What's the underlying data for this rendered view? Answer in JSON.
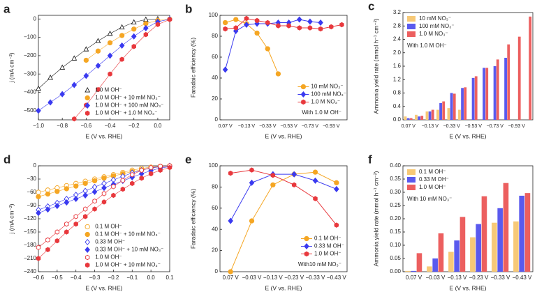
{
  "chart_data": [
    {
      "type": "scatter",
      "label": "a",
      "xlabel": "E (V vs. RHE)",
      "ylabel": "j (mA cm⁻²)",
      "legend": "lower right",
      "x": [
        -1.0,
        -0.9,
        -0.8,
        -0.7,
        -0.6,
        -0.5,
        -0.4,
        -0.3,
        -0.2,
        -0.1,
        0.0,
        0.1
      ],
      "xlim": [
        -1.0,
        0.1
      ],
      "xticks": [
        {
          "value": -1.0,
          "label": "−1.0"
        },
        {
          "value": -0.8,
          "label": "−0.8"
        },
        {
          "value": -0.6,
          "label": "−0.6"
        },
        {
          "value": -0.4,
          "label": "−0.4"
        },
        {
          "value": -0.2,
          "label": "−0.2"
        },
        {
          "value": 0,
          "label": "0.0"
        }
      ],
      "ylim": [
        -550,
        20
      ],
      "yticks": [
        0,
        {
          "value": -100,
          "label": "−100"
        },
        {
          "value": -200,
          "label": "−200"
        },
        {
          "value": -300,
          "label": "−300"
        },
        {
          "value": -400,
          "label": "−400"
        },
        {
          "value": -500,
          "label": "−500"
        }
      ],
      "series": [
        {
          "name": "1.0 M OH⁻",
          "color": "#222222",
          "marker": "triangle",
          "filled": false,
          "values": [
            -380,
            -320,
            -265,
            -215,
            -165,
            -120,
            -80,
            -45,
            -18,
            -3,
            0,
            null
          ]
        },
        {
          "name": "1.0 M OH⁻ + 10 mM NO₃⁻",
          "color": "#f5a623",
          "marker": "circle",
          "filled": true,
          "values": [
            null,
            null,
            null,
            null,
            -225,
            -175,
            -130,
            -90,
            -55,
            -25,
            -8,
            -1
          ]
        },
        {
          "name": "1.0 M OH⁻ + 100 mM NO₃⁻",
          "color": "#3a3af0",
          "marker": "diamond",
          "filled": true,
          "values": [
            -500,
            -455,
            -410,
            -360,
            -310,
            -255,
            -200,
            -145,
            -95,
            -50,
            -15,
            -1
          ]
        },
        {
          "name": "1.0 M OH⁻ + 1.0 M NO₃⁻",
          "color": "#e8383d",
          "marker": "hexagon",
          "filled": true,
          "values": [
            null,
            null,
            null,
            -545,
            -470,
            -385,
            -300,
            -220,
            -150,
            -85,
            -30,
            -3
          ]
        }
      ]
    },
    {
      "type": "line",
      "label": "b",
      "xlabel": "E (V vs. RHE)",
      "ylabel": "Faradaic efficiency (%)",
      "legend": "lower right",
      "annotation": "With 1.0 M OH⁻",
      "categories": [
        "0.07 V",
        null,
        "−0.13 V",
        null,
        "−0.33 V",
        null,
        "−0.53 V",
        null,
        "−0.73 V",
        null,
        "−0.93 V",
        null
      ],
      "ylim": [
        0,
        100
      ],
      "yticks": [
        0,
        20,
        40,
        60,
        80,
        100
      ],
      "series": [
        {
          "name": "10 mM NO₃⁻",
          "color": "#f5a623",
          "marker": "circle",
          "values": [
            93,
            96,
            92,
            83,
            68,
            44,
            null,
            null,
            null,
            null,
            null,
            null
          ]
        },
        {
          "name": "100 mM NO₃⁻",
          "color": "#3a3af0",
          "marker": "diamond",
          "values": [
            48,
            85,
            91,
            92,
            92,
            93,
            93,
            96,
            94,
            93,
            null,
            null
          ]
        },
        {
          "name": "1.0 M NO₃⁻",
          "color": "#e8383d",
          "marker": "hexagon",
          "values": [
            87,
            88,
            97,
            95,
            93,
            90,
            90,
            88,
            88,
            87,
            89,
            91
          ]
        }
      ]
    },
    {
      "type": "bar",
      "label": "c",
      "xlabel": "E (V vs. RHE)",
      "ylabel": "Ammonia yield rate (mmol h⁻¹ cm⁻²)",
      "legend": "upper left",
      "annotation": "With 1.0 M OH⁻",
      "categories": [
        "0.07 V",
        null,
        "−0.13 V",
        null,
        "−0.33 V",
        null,
        "−0.53 V",
        null,
        "−0.73 V",
        null,
        "−0.93 V",
        null
      ],
      "ylim": [
        0,
        3.2
      ],
      "yticks": [
        {
          "value": 0,
          "label": "0.0"
        },
        0.4,
        0.8,
        1.2,
        1.6,
        {
          "value": 2.0,
          "label": "2.0"
        },
        2.4,
        2.8,
        3.2
      ],
      "series": [
        {
          "name": "10 mM NO₃⁻",
          "color": "#f7c977",
          "values": [
            0.1,
            0.15,
            0.25,
            0.3,
            0.35,
            0.3,
            null,
            null,
            null,
            null,
            null,
            null
          ]
        },
        {
          "name": "100 mM NO₃⁻",
          "color": "#5a5aee",
          "values": [
            0.05,
            0.1,
            0.25,
            0.5,
            0.8,
            0.95,
            1.25,
            1.55,
            1.6,
            1.85,
            null,
            null
          ]
        },
        {
          "name": "1.0 M NO₃⁻",
          "color": "#ec5f5f",
          "values": [
            0.05,
            0.12,
            0.3,
            0.55,
            0.78,
            0.97,
            1.3,
            1.55,
            1.8,
            2.25,
            2.48,
            3.08
          ]
        }
      ]
    },
    {
      "type": "scatter",
      "label": "d",
      "xlabel": "E (V vs. RHE)",
      "ylabel": "j (mA cm⁻²)",
      "legend": "lower right",
      "x": [
        -0.6,
        -0.55,
        -0.5,
        -0.45,
        -0.4,
        -0.35,
        -0.3,
        -0.25,
        -0.2,
        -0.15,
        -0.1,
        -0.05,
        0.0,
        0.05,
        0.1
      ],
      "xlim": [
        -0.6,
        0.1
      ],
      "xticks": [
        {
          "value": -0.6,
          "label": "−0.6"
        },
        {
          "value": -0.5,
          "label": "−0.5"
        },
        {
          "value": -0.4,
          "label": "−0.4"
        },
        {
          "value": -0.3,
          "label": "−0.3"
        },
        {
          "value": -0.2,
          "label": "−0.2"
        },
        {
          "value": -0.1,
          "label": "−0.1"
        },
        {
          "value": 0,
          "label": "0.0"
        },
        0.1
      ],
      "ylim": [
        -240,
        0
      ],
      "yticks": [
        0,
        {
          "value": -30,
          "label": "−30"
        },
        {
          "value": -60,
          "label": "−60"
        },
        {
          "value": -90,
          "label": "−90"
        },
        {
          "value": -120,
          "label": "−120"
        },
        {
          "value": -150,
          "label": "−150"
        },
        {
          "value": -180,
          "label": "−180"
        },
        {
          "value": -210,
          "label": "−210"
        },
        {
          "value": -240,
          "label": "−240"
        }
      ],
      "series": [
        {
          "name": "0.1 M OH⁻",
          "color": "#f5a623",
          "marker": "circle",
          "filled": false,
          "values": [
            -60,
            -55,
            -50,
            -45,
            -40,
            -35,
            -30,
            -25,
            -20,
            -15,
            -10,
            -6,
            -3,
            -1,
            0
          ]
        },
        {
          "name": "0.1 M OH⁻ + 10 mM NO₃⁻",
          "color": "#f5a623",
          "marker": "circle",
          "filled": true,
          "values": [
            -70,
            -64,
            -58,
            -52,
            -46,
            -40,
            -34,
            -28,
            -23,
            -18,
            -13,
            -9,
            -5,
            -2,
            -1
          ]
        },
        {
          "name": "0.33 M OH⁻",
          "color": "#3a3af0",
          "marker": "diamond",
          "filled": false,
          "values": [
            -100,
            -92,
            -84,
            -75,
            -66,
            -57,
            -48,
            -40,
            -32,
            -24,
            -16,
            -10,
            -5,
            -2,
            0
          ]
        },
        {
          "name": "0.33 M OH⁻ + 10 mM NO₃⁻",
          "color": "#3a3af0",
          "marker": "diamond",
          "filled": true,
          "values": [
            -107,
            -99,
            -91,
            -83,
            -75,
            -67,
            -59,
            -50,
            -42,
            -34,
            -26,
            -18,
            -11,
            -5,
            -2
          ]
        },
        {
          "name": "1.0 M OH⁻",
          "color": "#e8383d",
          "marker": "hexagon",
          "filled": false,
          "values": [
            -185,
            -168,
            -150,
            -132,
            -115,
            -98,
            -80,
            -63,
            -47,
            -33,
            -20,
            -10,
            -4,
            -1,
            0
          ]
        },
        {
          "name": "1.0 M OH⁻ + 10 mM NO₃⁻",
          "color": "#e8383d",
          "marker": "hexagon",
          "filled": true,
          "values": [
            -210,
            -190,
            -170,
            -150,
            -132,
            -115,
            -98,
            -82,
            -67,
            -53,
            -40,
            -28,
            -18,
            -10,
            -4
          ]
        }
      ]
    },
    {
      "type": "line",
      "label": "e",
      "xlabel": "E (V vs. RHE)",
      "ylabel": "Faradaic efficiency (%)",
      "legend": "lower right",
      "annotation": "With10 mM NO₃⁻",
      "categories": [
        "0.07 V",
        "−0.03 V",
        "−0.13 V",
        "−0.23 V",
        "−0.33 V",
        "−0.43 V"
      ],
      "ylim": [
        0,
        100
      ],
      "yticks": [
        0,
        20,
        40,
        60,
        80,
        100
      ],
      "series": [
        {
          "name": "0.1 M OH⁻",
          "color": "#f5a623",
          "marker": "circle",
          "values": [
            0,
            48,
            82,
            92,
            94,
            84
          ]
        },
        {
          "name": "0.33 M OH⁻",
          "color": "#3a3af0",
          "marker": "diamond",
          "values": [
            48,
            84,
            92,
            92,
            86,
            78
          ]
        },
        {
          "name": "1.0 M OH⁻",
          "color": "#e8383d",
          "marker": "hexagon",
          "values": [
            93,
            96,
            91,
            82,
            69,
            44
          ]
        }
      ]
    },
    {
      "type": "bar",
      "label": "f",
      "xlabel": "E (V vs. RHE)",
      "ylabel": "Ammonia yield rate (mmol h⁻¹ cm⁻²)",
      "legend": "upper left",
      "annotation": "With 10 mM NO₃⁻",
      "categories": [
        "0.07 V",
        "−0.03 V",
        "−0.13 V",
        "−0.23 V",
        "−0.33 V",
        "−0.43 V"
      ],
      "ylim": [
        0,
        0.4
      ],
      "yticks": [
        {
          "value": 0,
          "label": "0.00"
        },
        0.05,
        {
          "value": 0.1,
          "label": "0.10"
        },
        0.15,
        {
          "value": 0.2,
          "label": "0.20"
        },
        0.25,
        {
          "value": 0.3,
          "label": "0.30"
        },
        0.35,
        {
          "value": 0.4,
          "label": "0.40"
        }
      ],
      "series": [
        {
          "name": "0.1 M OH⁻",
          "color": "#f7c977",
          "values": [
            0.003,
            0.02,
            0.075,
            0.13,
            0.185,
            0.19
          ]
        },
        {
          "name": "0.33 M OH⁻",
          "color": "#5a5aee",
          "values": [
            0.003,
            0.05,
            0.118,
            0.18,
            0.24,
            0.287
          ]
        },
        {
          "name": "1.0 M OH⁻",
          "color": "#ec5f5f",
          "values": [
            0.07,
            0.145,
            0.207,
            0.285,
            0.335,
            0.297
          ]
        }
      ]
    }
  ]
}
